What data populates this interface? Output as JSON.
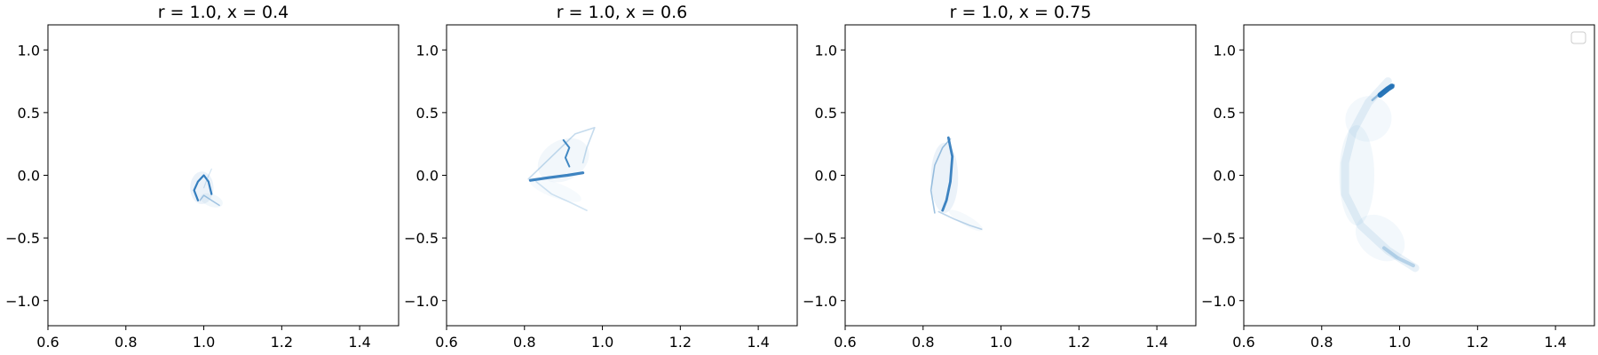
{
  "chart_data": [
    {
      "type": "heatmap",
      "title": "r = 1.0, x = 0.4",
      "xlim": [
        0.6,
        1.5
      ],
      "ylim": [
        -1.2,
        1.2
      ],
      "xticks": [
        "0.6",
        "0.8",
        "1.0",
        "1.2",
        "1.4"
      ],
      "yticks": [
        "1.0",
        "0.5",
        "0.0",
        "−0.5",
        "−1.0"
      ],
      "colormap": "Blues",
      "legend": false,
      "blobs": [
        {
          "x": 0.995,
          "y": -0.1,
          "rx": 0.03,
          "ry": 0.13,
          "rot": 0,
          "opacity": 0.18,
          "color": "#8fb9dc"
        },
        {
          "x": 1.02,
          "y": -0.2,
          "rx": 0.03,
          "ry": 0.05,
          "rot": 20,
          "opacity": 0.14,
          "color": "#9cc3e3"
        }
      ],
      "curves": [
        {
          "points": [
            [
              0.985,
              -0.2
            ],
            [
              0.975,
              -0.12
            ],
            [
              0.985,
              -0.05
            ],
            [
              1.0,
              0.0
            ],
            [
              1.012,
              -0.05
            ],
            [
              1.02,
              -0.15
            ]
          ],
          "width": 2.2,
          "opacity": 0.95,
          "color": "#2a77ba"
        },
        {
          "points": [
            [
              0.99,
              -0.2
            ],
            [
              1.0,
              -0.16
            ],
            [
              1.02,
              -0.2
            ],
            [
              1.04,
              -0.24
            ]
          ],
          "width": 1.5,
          "opacity": 0.5,
          "color": "#4f8fc7"
        },
        {
          "points": [
            [
              1.0,
              -0.1
            ],
            [
              1.01,
              -0.02
            ],
            [
              1.02,
              0.05
            ]
          ],
          "width": 1.2,
          "opacity": 0.3,
          "color": "#6aa4d4"
        }
      ]
    },
    {
      "type": "heatmap",
      "title": "r = 1.0, x = 0.6",
      "xlim": [
        0.6,
        1.5
      ],
      "ylim": [
        -1.2,
        1.2
      ],
      "xticks": [
        "0.6",
        "0.8",
        "1.0",
        "1.2",
        "1.4"
      ],
      "yticks": [
        "1.0",
        "0.5",
        "0.0",
        "−0.5",
        "−1.0"
      ],
      "colormap": "Blues",
      "legend": false,
      "blobs": [
        {
          "x": 0.9,
          "y": 0.12,
          "rx": 0.07,
          "ry": 0.16,
          "rot": -30,
          "opacity": 0.13,
          "color": "#9cc3e3"
        },
        {
          "x": 0.88,
          "y": -0.12,
          "rx": 0.07,
          "ry": 0.06,
          "rot": 20,
          "opacity": 0.1,
          "color": "#a9cbe8"
        }
      ],
      "curves": [
        {
          "points": [
            [
              0.81,
              -0.03
            ],
            [
              0.86,
              0.12
            ],
            [
              0.93,
              0.33
            ],
            [
              0.98,
              0.38
            ],
            [
              0.96,
              0.22
            ],
            [
              0.95,
              0.1
            ]
          ],
          "width": 1.6,
          "opacity": 0.35,
          "color": "#5a97cb"
        },
        {
          "points": [
            [
              0.815,
              -0.04
            ],
            [
              0.86,
              -0.02
            ],
            [
              0.91,
              0.0
            ],
            [
              0.95,
              0.02
            ]
          ],
          "width": 3.2,
          "opacity": 0.9,
          "color": "#2a77ba"
        },
        {
          "points": [
            [
              0.9,
              0.28
            ],
            [
              0.915,
              0.22
            ],
            [
              0.905,
              0.14
            ],
            [
              0.915,
              0.07
            ]
          ],
          "width": 2.0,
          "opacity": 0.9,
          "color": "#2f7cbd"
        },
        {
          "points": [
            [
              0.83,
              -0.05
            ],
            [
              0.87,
              -0.15
            ],
            [
              0.92,
              -0.22
            ],
            [
              0.96,
              -0.28
            ]
          ],
          "width": 1.6,
          "opacity": 0.3,
          "color": "#6aa4d4"
        }
      ]
    },
    {
      "type": "heatmap",
      "title": "r = 1.0, x = 0.75",
      "xlim": [
        0.6,
        1.5
      ],
      "ylim": [
        -1.2,
        1.2
      ],
      "xticks": [
        "0.6",
        "0.8",
        "1.0",
        "1.2",
        "1.4"
      ],
      "yticks": [
        "1.0",
        "0.5",
        "0.0",
        "−0.5",
        "−1.0"
      ],
      "colormap": "Blues",
      "legend": false,
      "blobs": [
        {
          "x": 0.855,
          "y": -0.02,
          "rx": 0.035,
          "ry": 0.28,
          "rot": 0,
          "opacity": 0.18,
          "color": "#8fb9dc"
        },
        {
          "x": 0.91,
          "y": -0.36,
          "rx": 0.05,
          "ry": 0.04,
          "rot": 30,
          "opacity": 0.12,
          "color": "#a9cbe8"
        }
      ],
      "curves": [
        {
          "points": [
            [
              0.83,
              -0.3
            ],
            [
              0.82,
              -0.12
            ],
            [
              0.83,
              0.08
            ],
            [
              0.85,
              0.22
            ],
            [
              0.87,
              0.29
            ]
          ],
          "width": 1.6,
          "opacity": 0.55,
          "color": "#4f8fc7"
        },
        {
          "points": [
            [
              0.865,
              0.3
            ],
            [
              0.875,
              0.15
            ],
            [
              0.87,
              -0.05
            ],
            [
              0.86,
              -0.2
            ],
            [
              0.85,
              -0.28
            ]
          ],
          "width": 2.8,
          "opacity": 0.9,
          "color": "#2a77ba"
        },
        {
          "points": [
            [
              0.84,
              -0.29
            ],
            [
              0.88,
              -0.35
            ],
            [
              0.92,
              -0.4
            ],
            [
              0.95,
              -0.43
            ]
          ],
          "width": 1.6,
          "opacity": 0.4,
          "color": "#5a97cb"
        }
      ]
    },
    {
      "type": "heatmap",
      "title": "",
      "xlim": [
        0.6,
        1.5
      ],
      "ylim": [
        -1.2,
        1.2
      ],
      "xticks": [
        "0.6",
        "0.8",
        "1.0",
        "1.2",
        "1.4"
      ],
      "yticks": [
        "1.0",
        "0.5",
        "0.0",
        "−0.5",
        "−1.0"
      ],
      "colormap": "Blues",
      "legend": true,
      "legend_position": "upper right",
      "blobs": [
        {
          "x": 0.89,
          "y": 0.0,
          "rx": 0.045,
          "ry": 0.4,
          "rot": 0,
          "opacity": 0.14,
          "color": "#9cc3e3"
        },
        {
          "x": 0.92,
          "y": 0.45,
          "rx": 0.06,
          "ry": 0.18,
          "rot": -35,
          "opacity": 0.12,
          "color": "#9cc3e3"
        },
        {
          "x": 0.95,
          "y": -0.5,
          "rx": 0.07,
          "ry": 0.16,
          "rot": 40,
          "opacity": 0.12,
          "color": "#9cc3e3"
        }
      ],
      "curves": [
        {
          "points": [
            [
              1.04,
              -0.74
            ],
            [
              0.97,
              -0.6
            ],
            [
              0.9,
              -0.4
            ],
            [
              0.86,
              -0.15
            ],
            [
              0.86,
              0.1
            ],
            [
              0.88,
              0.35
            ],
            [
              0.92,
              0.58
            ],
            [
              0.97,
              0.75
            ]
          ],
          "width": 9,
          "opacity": 0.18,
          "color": "#7fb0d8"
        },
        {
          "points": [
            [
              1.035,
              -0.72
            ],
            [
              0.995,
              -0.66
            ],
            [
              0.96,
              -0.58
            ]
          ],
          "width": 4,
          "opacity": 0.35,
          "color": "#5a97cb"
        },
        {
          "points": [
            [
              0.93,
              0.6
            ],
            [
              0.96,
              0.68
            ],
            [
              0.985,
              0.72
            ]
          ],
          "width": 2.5,
          "opacity": 0.55,
          "color": "#4f8fc7"
        },
        {
          "points": [
            [
              0.95,
              0.64
            ],
            [
              0.97,
              0.69
            ],
            [
              0.98,
              0.71
            ]
          ],
          "width": 6,
          "opacity": 0.95,
          "color": "#1f6fb4"
        }
      ]
    }
  ]
}
